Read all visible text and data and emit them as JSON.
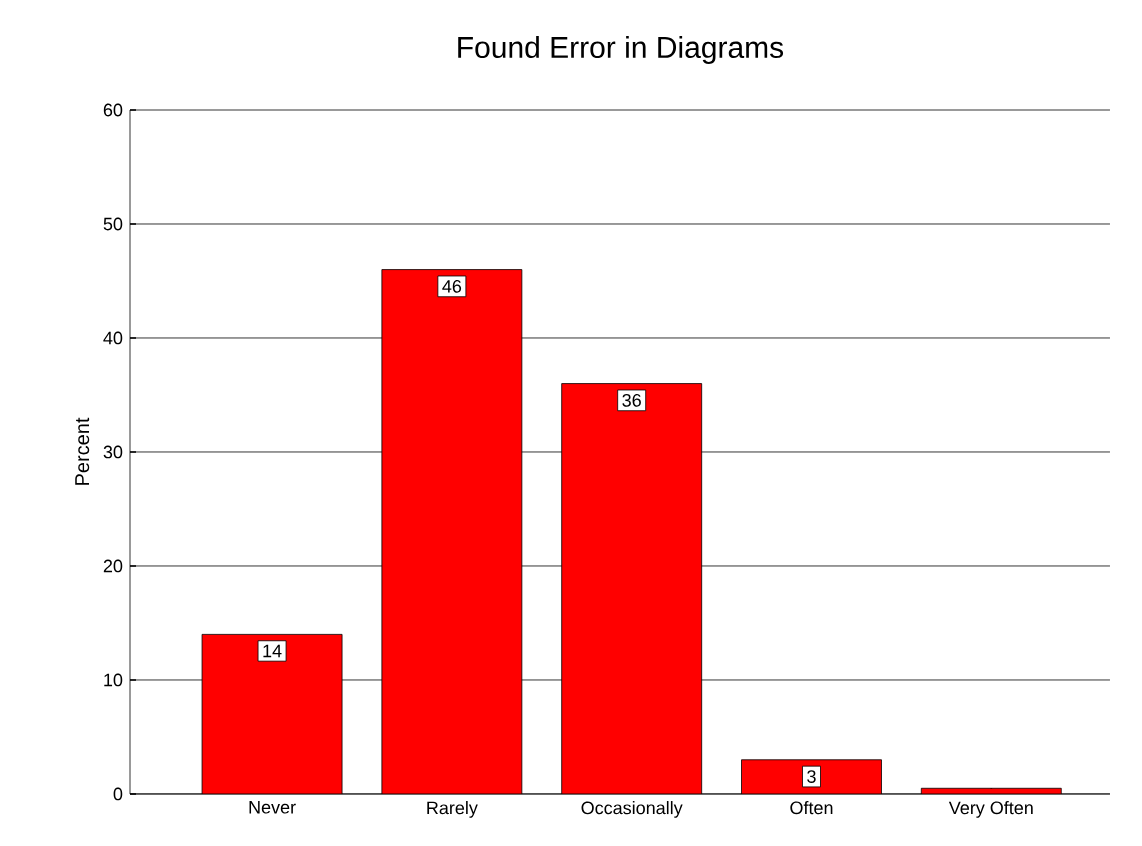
{
  "chart_data": {
    "type": "bar",
    "title": "Found Error in Diagrams",
    "ylabel": "Percent",
    "categories": [
      "Never",
      "Rarely",
      "Occasionally",
      "Often",
      "Very Often"
    ],
    "values": [
      14,
      46,
      36,
      3,
      0.5
    ],
    "value_labels": [
      "14",
      "46",
      "36",
      "3",
      null
    ],
    "color": "#ff0000",
    "ylim": [
      0,
      60
    ],
    "yticks": [
      0,
      10,
      20,
      30,
      40,
      50,
      60
    ],
    "grid": "y"
  }
}
